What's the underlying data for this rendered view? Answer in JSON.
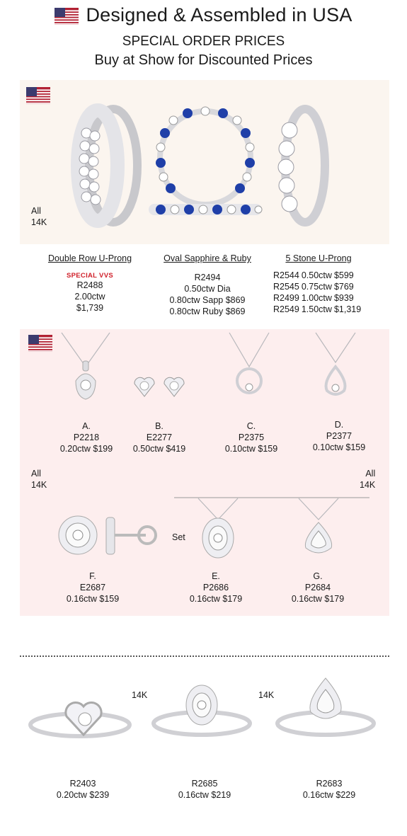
{
  "header": {
    "line1": "Designed & Assembled in USA",
    "line2": "SPECIAL ORDER PRICES",
    "line3": "Buy at Show for Discounted Prices"
  },
  "colors": {
    "panel1": "#fbf5ef",
    "panel2": "#fdeeee",
    "accent_red": "#d0202a",
    "sapphire": "#1f3fa8"
  },
  "rings_section": {
    "metal_label": [
      "All",
      "14K"
    ],
    "products": [
      {
        "title": "Double Row U-Prong",
        "tag": "SPECIAL VVS",
        "lines": [
          "R2488",
          "2.00ctw",
          "$1,739"
        ]
      },
      {
        "title": "Oval Sapphire & Ruby",
        "lines": [
          "R2494",
          "0.50ctw Dia",
          "0.80ctw Sapp $869",
          "0.80ctw Ruby $869"
        ]
      },
      {
        "title": "5 Stone U-Prong",
        "rows": [
          [
            "R2544",
            "0.50ctw",
            "$599"
          ],
          [
            "R2545",
            "0.75ctw",
            "$769"
          ],
          [
            "R2499",
            "1.00ctw",
            "$939"
          ],
          [
            "R2549",
            "1.50ctw",
            "$1,319"
          ]
        ]
      }
    ]
  },
  "pendants_section": {
    "metal_label_left": [
      "All",
      "14K"
    ],
    "metal_label_right": [
      "All",
      "14K"
    ],
    "set_label": "Set",
    "items_top": [
      {
        "letter": "A.",
        "sku": "P2218",
        "price": "0.20ctw $199"
      },
      {
        "letter": "B.",
        "sku": "E2277",
        "price": "0.50ctw $419"
      },
      {
        "letter": "C.",
        "sku": "P2375",
        "price": "0.10ctw $159"
      },
      {
        "letter": "D.",
        "sku": "P2377",
        "price": "0.10ctw $159"
      }
    ],
    "items_bottom": [
      {
        "letter": "F.",
        "sku": "E2687",
        "price": "0.16ctw $159"
      },
      {
        "letter": "E.",
        "sku": "P2686",
        "price": "0.16ctw $179"
      },
      {
        "letter": "G.",
        "sku": "P2684",
        "price": "0.16ctw $179"
      }
    ]
  },
  "bottom_rings": {
    "metal_labels": [
      "14K",
      "14K"
    ],
    "items": [
      {
        "sku": "R2403",
        "price": "0.20ctw $239"
      },
      {
        "sku": "R2685",
        "price": "0.16ctw $219"
      },
      {
        "sku": "R2683",
        "price": "0.16ctw $229"
      }
    ]
  }
}
